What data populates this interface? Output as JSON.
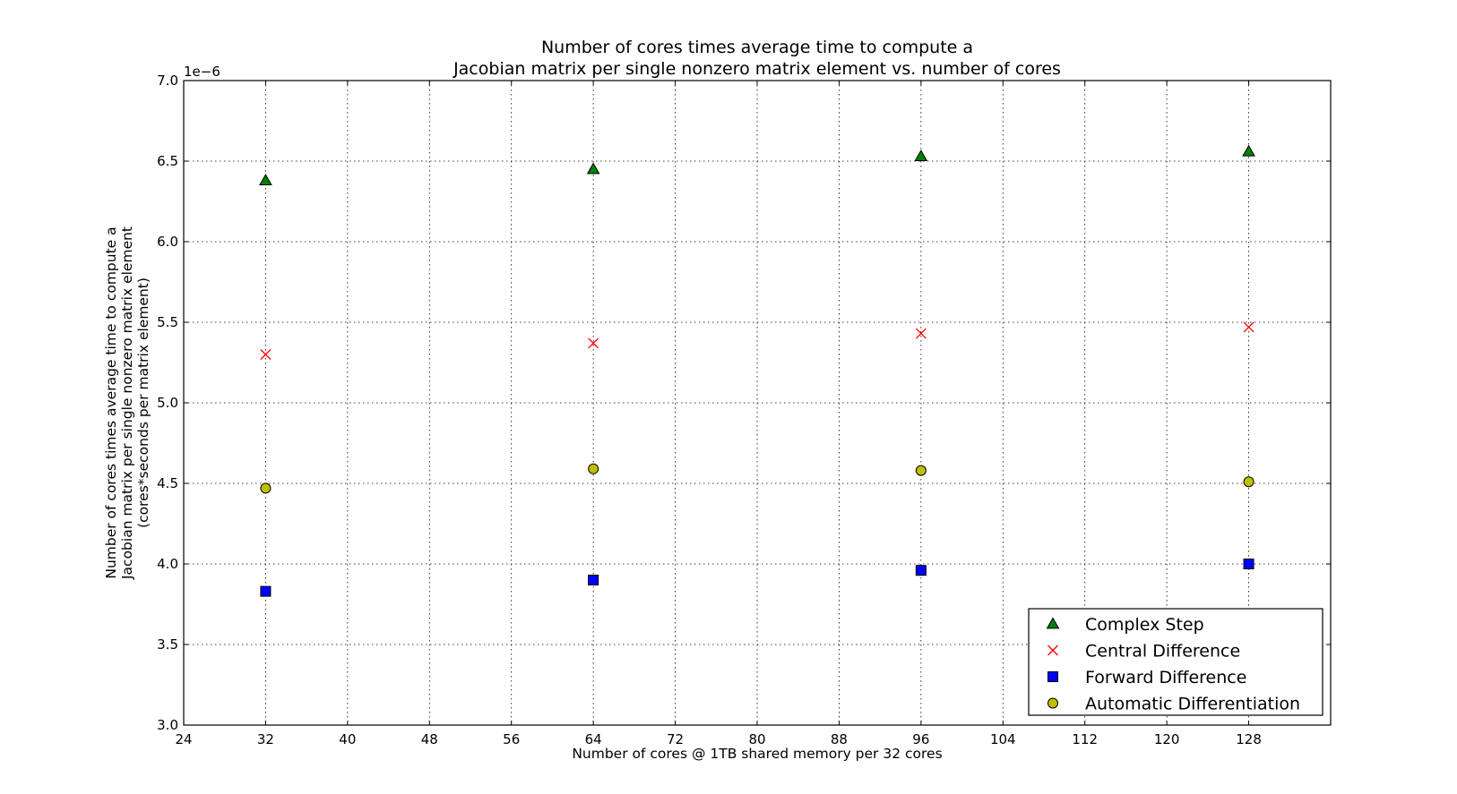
{
  "chart_data": {
    "type": "scatter",
    "title_lines": [
      "Number of cores times average time to compute a",
      "Jacobian matrix per single nonzero matrix element vs. number of cores"
    ],
    "xlabel": "Number of cores @ 1TB shared memory per 32 cores",
    "ylabel_lines": [
      "Number of cores times average time to compute a",
      "Jacobian matrix per single nonzero matrix element",
      "(cores*seconds per matrix element)"
    ],
    "y_offset_label": "1e−6",
    "xlim": [
      24,
      136
    ],
    "ylim": [
      3.0,
      7.0
    ],
    "x_ticks": [
      24,
      32,
      40,
      48,
      56,
      64,
      72,
      80,
      88,
      96,
      104,
      112,
      120,
      128
    ],
    "x_tick_labels": [
      "24",
      "32",
      "40",
      "48",
      "56",
      "64",
      "72",
      "80",
      "88",
      "96",
      "104",
      "112",
      "120",
      "128"
    ],
    "y_ticks": [
      3.0,
      3.5,
      4.0,
      4.5,
      5.0,
      5.5,
      6.0,
      6.5,
      7.0
    ],
    "y_tick_labels": [
      "3.0",
      "3.5",
      "4.0",
      "4.5",
      "5.0",
      "5.5",
      "6.0",
      "6.5",
      "7.0"
    ],
    "grid": true,
    "legend_position": "lower-right",
    "x": [
      32,
      64,
      96,
      128
    ],
    "series": [
      {
        "name": "Complex Step",
        "marker": "triangle",
        "color": "#008000",
        "values": [
          6.38,
          6.45,
          6.53,
          6.56
        ]
      },
      {
        "name": "Central Difference",
        "marker": "x",
        "color": "#ff0000",
        "values": [
          5.3,
          5.37,
          5.43,
          5.47
        ]
      },
      {
        "name": "Forward Difference",
        "marker": "square",
        "color": "#0000ff",
        "values": [
          3.83,
          3.9,
          3.96,
          4.0
        ]
      },
      {
        "name": "Automatic Differentiation",
        "marker": "circle",
        "color": "#bfbf00",
        "values": [
          4.47,
          4.59,
          4.58,
          4.51
        ]
      }
    ]
  }
}
